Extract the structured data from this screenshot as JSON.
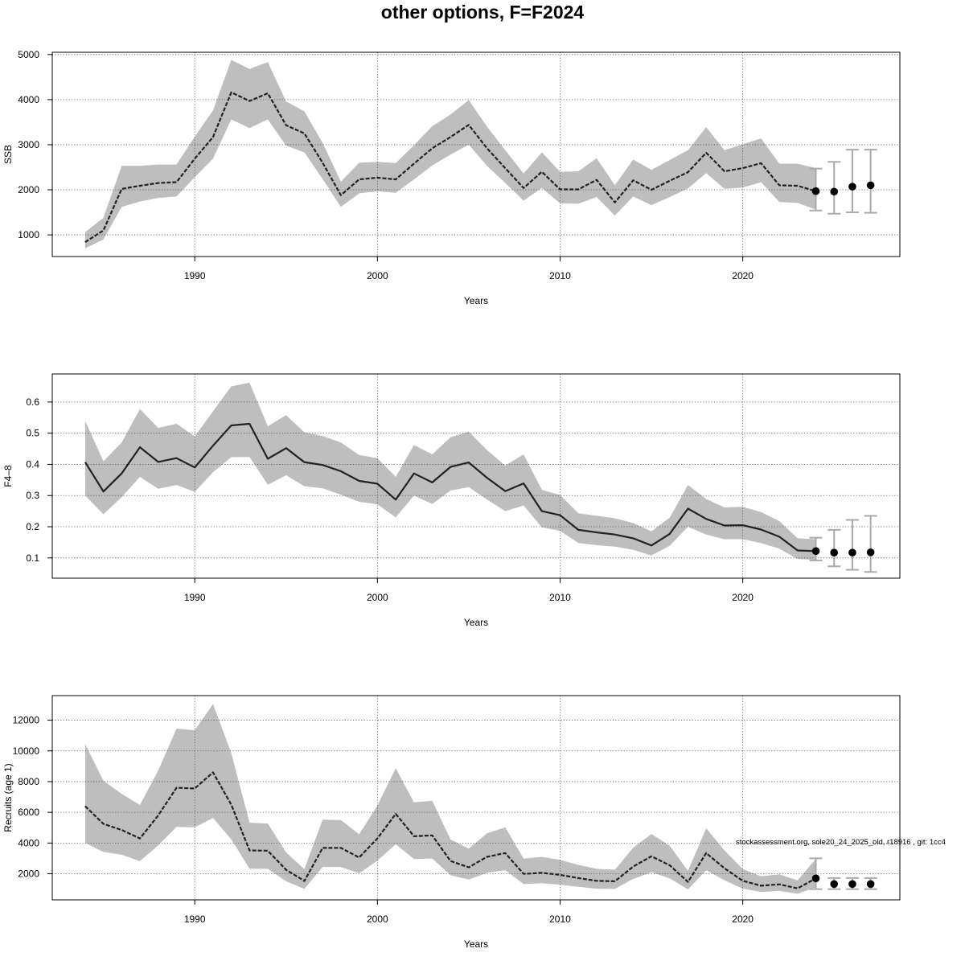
{
  "title": "other options, F=F2024",
  "footnote": "stockassessment.org, sole20_24_2025_old, r18916 , git: 1cc4",
  "colors": {
    "band": "#bebebe",
    "line": "#222222",
    "grid": "#555555",
    "errorbar": "#aaaaaa",
    "point": "#000000"
  },
  "chart_data": [
    {
      "type": "line",
      "ylabel": "SSB",
      "xlabel": "Years",
      "xlim": [
        1982.2,
        2028.6
      ],
      "ylim": [
        520,
        5050
      ],
      "xticks": [
        1990,
        2000,
        2010,
        2020
      ],
      "yticks": [
        1000,
        2000,
        3000,
        4000,
        5000
      ],
      "grid": true,
      "line_style": "dashed",
      "series": [
        {
          "years": [
            1984,
            1985,
            1986,
            1987,
            1988,
            1989,
            1990,
            1991,
            1992,
            1993,
            1994,
            1995,
            1996,
            1997,
            1998,
            1999,
            2000,
            2001,
            2002,
            2003,
            2004,
            2005,
            2006,
            2007,
            2008,
            2009,
            2010,
            2011,
            2012,
            2013,
            2014,
            2015,
            2016,
            2017,
            2018,
            2019,
            2020,
            2021,
            2022,
            2023,
            2024
          ],
          "estimate": [
            840,
            1100,
            2020,
            2090,
            2150,
            2170,
            2690,
            3170,
            4160,
            3970,
            4140,
            3430,
            3250,
            2600,
            1880,
            2230,
            2270,
            2230,
            2580,
            2920,
            3170,
            3440,
            2920,
            2480,
            2040,
            2400,
            2010,
            2010,
            2220,
            1720,
            2210,
            2000,
            2200,
            2390,
            2820,
            2410,
            2480,
            2590,
            2100,
            2090,
            1970
          ],
          "lower": [
            700,
            900,
            1620,
            1740,
            1820,
            1850,
            2280,
            2690,
            3560,
            3370,
            3560,
            2980,
            2830,
            2240,
            1620,
            1920,
            1970,
            1930,
            2230,
            2540,
            2780,
            3000,
            2530,
            2150,
            1760,
            2040,
            1700,
            1690,
            1840,
            1430,
            1850,
            1660,
            1840,
            2030,
            2370,
            2020,
            2050,
            2170,
            1730,
            1710,
            1560
          ],
          "upper": [
            1060,
            1380,
            2530,
            2530,
            2560,
            2560,
            3180,
            3760,
            4880,
            4680,
            4830,
            3960,
            3740,
            3040,
            2180,
            2600,
            2620,
            2590,
            2990,
            3410,
            3670,
            3990,
            3400,
            2880,
            2360,
            2830,
            2400,
            2410,
            2700,
            2100,
            2670,
            2440,
            2660,
            2880,
            3390,
            2880,
            3010,
            3140,
            2580,
            2580,
            2480
          ]
        }
      ],
      "forecast": {
        "years": [
          2024,
          2025,
          2026,
          2027
        ],
        "values": [
          1970,
          1960,
          2070,
          2100
        ],
        "lower": [
          1540,
          1470,
          1500,
          1490
        ],
        "upper": [
          2470,
          2620,
          2890,
          2890
        ]
      }
    },
    {
      "type": "line",
      "ylabel": "F4–8",
      "xlabel": "Years",
      "xlim": [
        1982.2,
        2028.6
      ],
      "ylim": [
        0.035,
        0.69
      ],
      "xticks": [
        1990,
        2000,
        2010,
        2020
      ],
      "yticks": [
        0.1,
        0.2,
        0.3,
        0.4,
        0.5,
        0.6
      ],
      "grid": true,
      "line_style": "solid",
      "series": [
        {
          "years": [
            1984,
            1985,
            1986,
            1987,
            1988,
            1989,
            1990,
            1991,
            1992,
            1993,
            1994,
            1995,
            1996,
            1997,
            1998,
            1999,
            2000,
            2001,
            2002,
            2003,
            2004,
            2005,
            2006,
            2007,
            2008,
            2009,
            2010,
            2011,
            2012,
            2013,
            2014,
            2015,
            2016,
            2017,
            2018,
            2019,
            2020,
            2021,
            2022,
            2023,
            2024
          ],
          "estimate": [
            0.407,
            0.313,
            0.371,
            0.455,
            0.408,
            0.42,
            0.39,
            0.46,
            0.525,
            0.53,
            0.418,
            0.452,
            0.407,
            0.398,
            0.378,
            0.347,
            0.338,
            0.287,
            0.371,
            0.342,
            0.392,
            0.406,
            0.357,
            0.314,
            0.339,
            0.25,
            0.237,
            0.19,
            0.182,
            0.175,
            0.163,
            0.14,
            0.177,
            0.258,
            0.225,
            0.204,
            0.205,
            0.191,
            0.168,
            0.124,
            0.122
          ],
          "lower": [
            0.3,
            0.24,
            0.295,
            0.36,
            0.322,
            0.334,
            0.312,
            0.375,
            0.423,
            0.424,
            0.335,
            0.365,
            0.33,
            0.323,
            0.303,
            0.28,
            0.272,
            0.23,
            0.3,
            0.273,
            0.316,
            0.327,
            0.287,
            0.25,
            0.268,
            0.198,
            0.187,
            0.148,
            0.141,
            0.136,
            0.126,
            0.108,
            0.139,
            0.2,
            0.175,
            0.16,
            0.16,
            0.148,
            0.13,
            0.096,
            0.094
          ],
          "upper": [
            0.54,
            0.41,
            0.47,
            0.577,
            0.517,
            0.53,
            0.49,
            0.57,
            0.65,
            0.662,
            0.522,
            0.558,
            0.503,
            0.491,
            0.47,
            0.43,
            0.42,
            0.36,
            0.462,
            0.432,
            0.487,
            0.505,
            0.446,
            0.396,
            0.432,
            0.318,
            0.302,
            0.243,
            0.235,
            0.227,
            0.212,
            0.185,
            0.229,
            0.334,
            0.289,
            0.262,
            0.264,
            0.247,
            0.218,
            0.163,
            0.16
          ]
        }
      ],
      "forecast": {
        "years": [
          2024,
          2025,
          2026,
          2027
        ],
        "values": [
          0.122,
          0.117,
          0.117,
          0.118
        ],
        "lower": [
          0.092,
          0.073,
          0.062,
          0.055
        ],
        "upper": [
          0.165,
          0.19,
          0.222,
          0.235
        ]
      }
    },
    {
      "type": "line",
      "ylabel": "Recruits (age 1)",
      "xlabel": "Years",
      "xlim": [
        1982.2,
        2028.6
      ],
      "ylim": [
        300,
        13600
      ],
      "xticks": [
        1990,
        2000,
        2010,
        2020
      ],
      "yticks": [
        2000,
        4000,
        6000,
        8000,
        10000,
        12000
      ],
      "grid": true,
      "line_style": "dashed",
      "series": [
        {
          "years": [
            1984,
            1985,
            1986,
            1987,
            1988,
            1989,
            1990,
            1991,
            1992,
            1993,
            1994,
            1995,
            1996,
            1997,
            1998,
            1999,
            2000,
            2001,
            2002,
            2003,
            2004,
            2005,
            2006,
            2007,
            2008,
            2009,
            2010,
            2011,
            2012,
            2013,
            2014,
            2015,
            2016,
            2017,
            2018,
            2019,
            2020,
            2021,
            2022,
            2023,
            2024
          ],
          "estimate": [
            6400,
            5250,
            4850,
            4300,
            5800,
            7600,
            7550,
            8600,
            6500,
            3520,
            3500,
            2260,
            1530,
            3680,
            3680,
            3060,
            4300,
            5900,
            4440,
            4500,
            2830,
            2420,
            3100,
            3350,
            1990,
            2060,
            1930,
            1720,
            1540,
            1510,
            2470,
            3140,
            2550,
            1470,
            3350,
            2360,
            1540,
            1220,
            1310,
            1050,
            1700
          ],
          "lower": [
            4000,
            3420,
            3240,
            2820,
            3850,
            5050,
            5030,
            5630,
            4250,
            2330,
            2320,
            1510,
            1010,
            2440,
            2440,
            2030,
            2850,
            3920,
            2960,
            2990,
            1900,
            1620,
            2060,
            2230,
            1330,
            1380,
            1290,
            1150,
            1030,
            1010,
            1660,
            2100,
            1700,
            980,
            2230,
            1580,
            1030,
            820,
            880,
            700,
            1120
          ],
          "upper": [
            10450,
            8060,
            7200,
            6480,
            8720,
            11450,
            11350,
            13050,
            9850,
            5320,
            5270,
            3390,
            2300,
            5520,
            5500,
            4570,
            6440,
            8870,
            6650,
            6750,
            4230,
            3640,
            4630,
            5020,
            2980,
            3100,
            2900,
            2580,
            2320,
            2260,
            3700,
            4590,
            3820,
            2190,
            4960,
            3520,
            2310,
            1840,
            1960,
            1570,
            2960
          ]
        }
      ],
      "forecast": {
        "years": [
          2024,
          2025,
          2026,
          2027
        ],
        "values": [
          1700,
          1330,
          1330,
          1330
        ],
        "lower": [
          1000,
          1000,
          1000,
          1000
        ],
        "upper": [
          3000,
          1720,
          1720,
          1720
        ]
      }
    }
  ]
}
